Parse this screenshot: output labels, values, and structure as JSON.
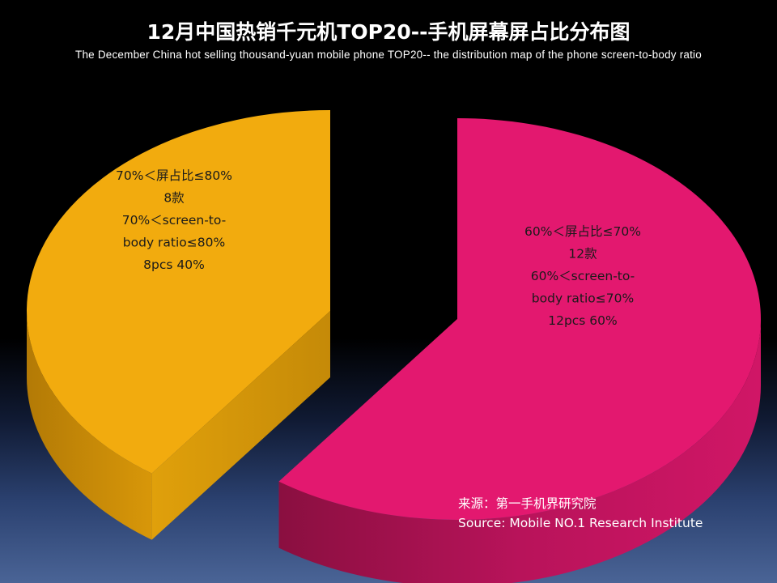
{
  "title": "12月中国热销千元机TOP20--手机屏幕屏占比分布图",
  "subtitle": "The December China hot selling thousand-yuan mobile phone TOP20-- the distribution map of the phone screen-to-body ratio",
  "source": {
    "line1": "来源：第一手机界研究院",
    "line2": "Source: Mobile NO.1 Research Institute"
  },
  "chart_data": {
    "type": "pie",
    "title": "12月中国热销千元机TOP20--手机屏幕屏占比分布图",
    "slices": [
      {
        "category": "60%＜屏占比≤70%",
        "category_en": "60%＜screen-to-body ratio≤70%",
        "count": 12,
        "percent": 60,
        "color": "#e3186f",
        "label_lines": [
          "60%＜屏占比≤70%",
          "12款",
          "60%＜screen-to-",
          "body ratio≤70%",
          "12pcs     60%"
        ]
      },
      {
        "category": "70%＜屏占比≤80%",
        "category_en": "70%＜screen-to-body ratio≤80%",
        "count": 8,
        "percent": 40,
        "color": "#f2ab0e",
        "label_lines": [
          "70%＜屏占比≤80%",
          "8款",
          "70%＜screen-to-",
          "body ratio≤80%",
          "8pcs     40%"
        ]
      }
    ]
  }
}
